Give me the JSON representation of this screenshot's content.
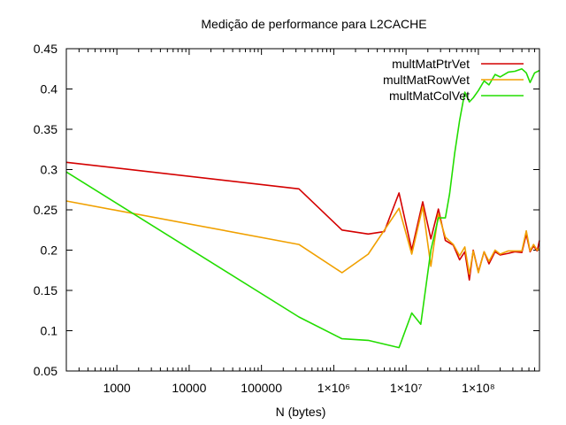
{
  "chart_data": {
    "type": "line",
    "title": "Medição de performance para L2CACHE",
    "xlabel": "N (bytes)",
    "ylabel": "",
    "x_scale": "log",
    "xlim": [
      200,
      700000000
    ],
    "ylim": [
      0.05,
      0.45
    ],
    "grid": false,
    "legend_position": "top-right",
    "x_ticks": [
      {
        "value": 1000,
        "label": "1000"
      },
      {
        "value": 10000,
        "label": "10000"
      },
      {
        "value": 100000,
        "label": "100000"
      },
      {
        "value": 1000000,
        "label": "1×10⁶"
      },
      {
        "value": 10000000,
        "label": "1×10⁷"
      },
      {
        "value": 100000000,
        "label": "1×10⁸"
      }
    ],
    "y_ticks": [
      {
        "value": 0.05,
        "label": "0.05"
      },
      {
        "value": 0.1,
        "label": "0.1"
      },
      {
        "value": 0.15,
        "label": "0.15"
      },
      {
        "value": 0.2,
        "label": "0.2"
      },
      {
        "value": 0.25,
        "label": "0.25"
      },
      {
        "value": 0.3,
        "label": "0.3"
      },
      {
        "value": 0.35,
        "label": "0.35"
      },
      {
        "value": 0.4,
        "label": "0.4"
      },
      {
        "value": 0.45,
        "label": "0.45"
      }
    ],
    "series": [
      {
        "name": "multMatPtrVet",
        "color": "#d40000",
        "x": [
          200,
          330000,
          1300000,
          3000000,
          5000000,
          8000000,
          12000000,
          17000000,
          22000000,
          28000000,
          35000000,
          45000000,
          55000000,
          65000000,
          75000000,
          85000000,
          100000000,
          120000000,
          140000000,
          170000000,
          200000000,
          260000000,
          320000000,
          400000000,
          460000000,
          520000000,
          580000000,
          650000000,
          700000000
        ],
        "y": [
          0.309,
          0.276,
          0.225,
          0.22,
          0.223,
          0.271,
          0.2,
          0.26,
          0.214,
          0.251,
          0.212,
          0.206,
          0.188,
          0.198,
          0.163,
          0.2,
          0.173,
          0.198,
          0.183,
          0.198,
          0.194,
          0.196,
          0.198,
          0.197,
          0.22,
          0.198,
          0.205,
          0.199,
          0.212
        ]
      },
      {
        "name": "multMatRowVet",
        "color": "#f0a000",
        "x": [
          200,
          330000,
          1300000,
          3000000,
          8000000,
          12000000,
          17000000,
          22000000,
          28000000,
          35000000,
          45000000,
          55000000,
          65000000,
          75000000,
          85000000,
          100000000,
          120000000,
          140000000,
          170000000,
          200000000,
          260000000,
          320000000,
          400000000,
          460000000,
          520000000,
          580000000,
          650000000,
          700000000
        ],
        "y": [
          0.261,
          0.207,
          0.172,
          0.195,
          0.252,
          0.195,
          0.254,
          0.18,
          0.245,
          0.216,
          0.207,
          0.193,
          0.204,
          0.17,
          0.199,
          0.172,
          0.198,
          0.186,
          0.2,
          0.195,
          0.199,
          0.199,
          0.199,
          0.224,
          0.199,
          0.207,
          0.2,
          0.202
        ]
      },
      {
        "name": "multMatColVet",
        "color": "#22dd00",
        "x": [
          200,
          330000,
          1300000,
          3000000,
          8000000,
          12000000,
          16000000,
          22000000,
          28000000,
          35000000,
          40000000,
          47000000,
          55000000,
          65000000,
          75000000,
          85000000,
          100000000,
          120000000,
          140000000,
          170000000,
          200000000,
          260000000,
          320000000,
          400000000,
          460000000,
          520000000,
          600000000,
          700000000
        ],
        "y": [
          0.297,
          0.117,
          0.09,
          0.088,
          0.079,
          0.122,
          0.108,
          0.2,
          0.24,
          0.24,
          0.27,
          0.32,
          0.361,
          0.396,
          0.384,
          0.389,
          0.398,
          0.41,
          0.405,
          0.418,
          0.415,
          0.421,
          0.422,
          0.425,
          0.42,
          0.408,
          0.42,
          0.423
        ]
      }
    ]
  }
}
